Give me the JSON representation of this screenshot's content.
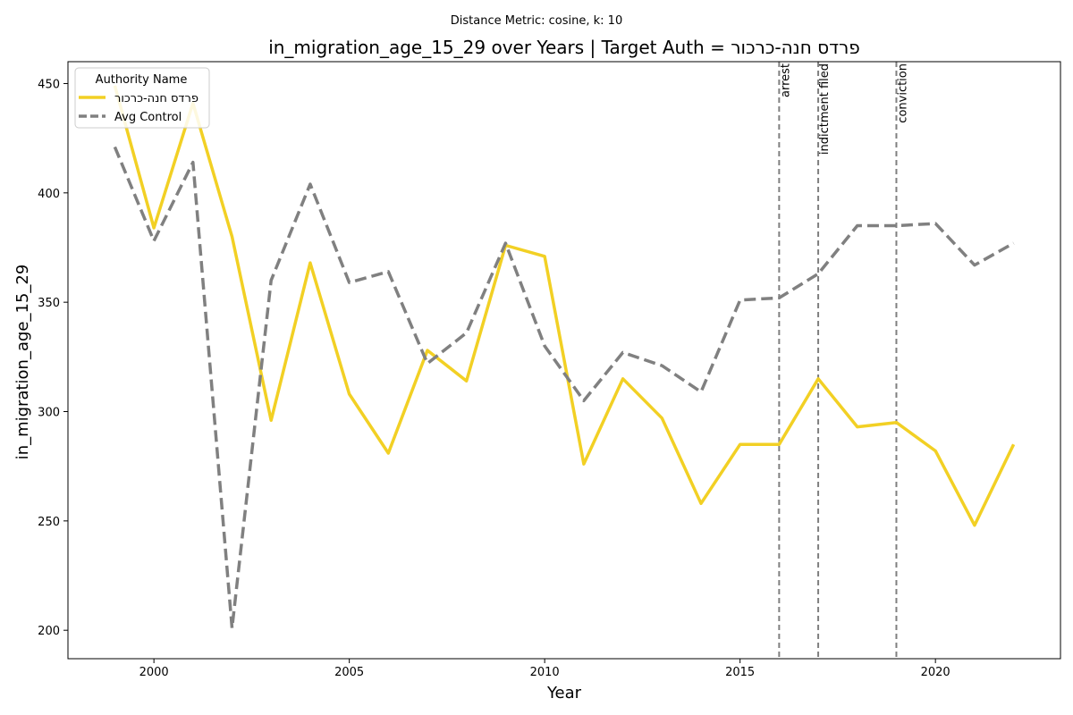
{
  "chart_data": {
    "type": "line",
    "suptitle": "Distance Metric: cosine, k: 10",
    "title": "in_migration_age_15_29 over Years | Target Auth = פרדס חנה-כרכור",
    "xlabel": "Year",
    "ylabel": "in_migration_age_15_29",
    "xlim": [
      1997.8,
      2023.2
    ],
    "ylim": [
      187,
      460
    ],
    "x_ticks": [
      2000,
      2005,
      2010,
      2015,
      2020
    ],
    "y_ticks": [
      200,
      250,
      300,
      350,
      400,
      450
    ],
    "grid": false,
    "legend": {
      "title": "Authority Name",
      "placement": "upper-left"
    },
    "x": [
      1999,
      2000,
      2001,
      2002,
      2003,
      2004,
      2005,
      2006,
      2007,
      2008,
      2009,
      2010,
      2011,
      2012,
      2013,
      2014,
      2015,
      2016,
      2017,
      2018,
      2019,
      2020,
      2021,
      2022
    ],
    "series": [
      {
        "name": "פרדס חנה-כרכור",
        "color": "#f2d024",
        "style": "solid",
        "values": [
          449,
          384,
          441,
          380,
          296,
          368,
          308,
          281,
          328,
          314,
          376,
          371,
          276,
          315,
          297,
          258,
          285,
          285,
          315,
          293,
          295,
          282,
          248,
          285
        ]
      },
      {
        "name": "Avg Control",
        "color": "#808080",
        "style": "dashed",
        "values": [
          421,
          378,
          414,
          201,
          360,
          404,
          359,
          364,
          322,
          336,
          377,
          330,
          305,
          327,
          321,
          309,
          351,
          352,
          363,
          385,
          385,
          386,
          367,
          377
        ]
      }
    ],
    "events": [
      {
        "x": 2016,
        "label": "arrest"
      },
      {
        "x": 2017,
        "label": "indictment filed"
      },
      {
        "x": 2019,
        "label": "conviction"
      }
    ]
  }
}
